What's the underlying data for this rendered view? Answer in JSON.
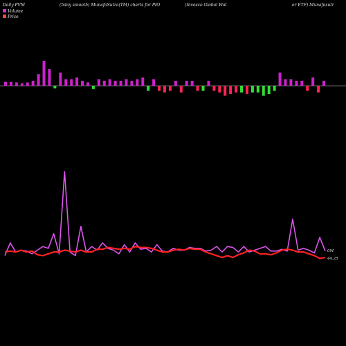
{
  "header": {
    "left": "Daily PVM",
    "mid": "(5day smooth) MunafaSutra(TM) charts for PIO",
    "right_a": "(Invesco  Global Wat",
    "right_b": "er ETF) Munafasutr"
  },
  "legend": {
    "volume_label": "Volume",
    "price_label": "Price",
    "volume_color": "#cc33cc",
    "price_color": "#ff4444"
  },
  "labels": {
    "volume_end": "0M",
    "price_end": "44.25"
  },
  "colors": {
    "background": "#000000",
    "up_bar": "#cc22cc",
    "down_bar_red": "#ff2255",
    "down_bar_green": "#33dd33",
    "volume_line": "#dd55ee",
    "price_line": "#ff2222",
    "baseline": "#888888"
  },
  "chart_data": [
    {
      "type": "bar",
      "title": "",
      "note": "price-volume momentum bars, scale unlabeled",
      "x": [
        1,
        2,
        3,
        4,
        5,
        6,
        7,
        8,
        9,
        10,
        11,
        12,
        13,
        14,
        15,
        16,
        17,
        18,
        19,
        20,
        21,
        22,
        23,
        24,
        25,
        26,
        27,
        28,
        29,
        30,
        31,
        32,
        33,
        34,
        35,
        36,
        37,
        38,
        39,
        40,
        41,
        42,
        43,
        44,
        45,
        46,
        47,
        48,
        49,
        50,
        51,
        52,
        53,
        54,
        55,
        56,
        57,
        58,
        59
      ],
      "values": [
        5,
        5,
        4,
        3,
        4,
        6,
        14,
        30,
        20,
        -3,
        16,
        8,
        8,
        10,
        6,
        4,
        -4,
        8,
        6,
        8,
        6,
        6,
        8,
        6,
        8,
        10,
        -6,
        8,
        -6,
        -8,
        -6,
        6,
        -8,
        6,
        6,
        -6,
        -6,
        6,
        -6,
        -8,
        -12,
        -10,
        -8,
        -8,
        -10,
        -8,
        -8,
        -12,
        -10,
        -6,
        16,
        8,
        8,
        6,
        6,
        -6,
        10,
        -8,
        6
      ],
      "signs": [
        "up",
        "up",
        "up",
        "up",
        "up",
        "up",
        "up",
        "up",
        "up",
        "green",
        "up",
        "up",
        "up",
        "up",
        "up",
        "up",
        "green",
        "up",
        "up",
        "up",
        "up",
        "up",
        "up",
        "up",
        "up",
        "up",
        "green",
        "up",
        "red",
        "red",
        "red",
        "up",
        "red",
        "up",
        "up",
        "red",
        "green",
        "up",
        "red",
        "red",
        "red",
        "red",
        "red",
        "green",
        "red",
        "green",
        "green",
        "green",
        "green",
        "green",
        "up",
        "up",
        "up",
        "up",
        "up",
        "red",
        "up",
        "red",
        "up"
      ],
      "ylim": [
        -20,
        35
      ]
    },
    {
      "type": "line",
      "title": "",
      "x": [
        1,
        2,
        3,
        4,
        5,
        6,
        7,
        8,
        9,
        10,
        11,
        12,
        13,
        14,
        15,
        16,
        17,
        18,
        19,
        20,
        21,
        22,
        23,
        24,
        25,
        26,
        27,
        28,
        29,
        30,
        31,
        32,
        33,
        34,
        35,
        36,
        37,
        38,
        39,
        40,
        41,
        42,
        43,
        44,
        45,
        46,
        47,
        48,
        49,
        50,
        51,
        52,
        53,
        54,
        55,
        56,
        57,
        58,
        59,
        60
      ],
      "ylim": [
        0,
        100
      ],
      "series": [
        {
          "name": "Volume",
          "values": [
            8,
            22,
            12,
            14,
            13,
            10,
            14,
            18,
            16,
            32,
            10,
            100,
            12,
            8,
            40,
            12,
            18,
            14,
            22,
            16,
            14,
            10,
            20,
            12,
            22,
            15,
            16,
            12,
            20,
            13,
            12,
            16,
            14,
            14,
            17,
            16,
            16,
            13,
            14,
            18,
            12,
            18,
            17,
            12,
            18,
            12,
            14,
            16,
            18,
            13,
            13,
            15,
            13,
            48,
            14,
            16,
            14,
            11,
            28,
            13
          ],
          "values_note": "relative smoothed volume level (axis unlabeled)"
        },
        {
          "name": "Price",
          "values": [
            12,
            13,
            12,
            14,
            12,
            13,
            9,
            8,
            10,
            12,
            12,
            14,
            13,
            12,
            14,
            12,
            12,
            15,
            15,
            17,
            16,
            15,
            16,
            15,
            18,
            17,
            17,
            16,
            14,
            12,
            12,
            14,
            15,
            14,
            16,
            15,
            15,
            12,
            10,
            8,
            6,
            8,
            6,
            9,
            11,
            14,
            13,
            10,
            10,
            9,
            11,
            14,
            15,
            14,
            12,
            12,
            10,
            8,
            5,
            6
          ],
          "values_note": "relative smoothed price level (axis unlabeled)"
        }
      ]
    }
  ]
}
